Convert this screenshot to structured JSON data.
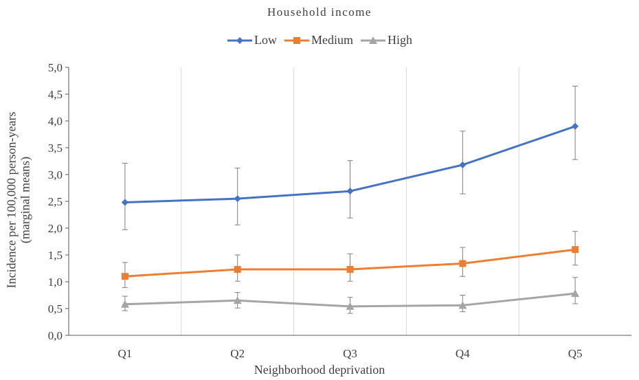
{
  "chart_data": {
    "type": "line",
    "title": "Household income",
    "xlabel": "Neighborhood deprivation",
    "ylabel": [
      "Incidence per 100,000 person-years",
      "(marginal means)"
    ],
    "categories": [
      "Q1",
      "Q2",
      "Q3",
      "Q4",
      "Q5"
    ],
    "ylim": [
      0,
      5
    ],
    "ytick_labels": [
      "0,0",
      "0,5",
      "1,0",
      "1,5",
      "2,0",
      "2,5",
      "3,0",
      "3,5",
      "4,0",
      "4,5",
      "5,0"
    ],
    "grid": "vertical category separators",
    "legend_position": "top",
    "series": [
      {
        "name": "Low",
        "color": "#4472C4",
        "marker": "diamond",
        "values": [
          2.48,
          2.55,
          2.69,
          3.18,
          3.9
        ],
        "error_low": [
          1.97,
          2.06,
          2.19,
          2.64,
          3.28
        ],
        "error_high": [
          3.21,
          3.12,
          3.26,
          3.81,
          4.65
        ]
      },
      {
        "name": "Medium",
        "color": "#ED7D31",
        "marker": "square",
        "values": [
          1.1,
          1.23,
          1.23,
          1.34,
          1.6
        ],
        "error_low": [
          0.89,
          1.01,
          1.01,
          1.1,
          1.31
        ],
        "error_high": [
          1.36,
          1.5,
          1.52,
          1.64,
          1.94
        ]
      },
      {
        "name": "High",
        "color": "#A5A5A5",
        "marker": "triangle",
        "values": [
          0.58,
          0.65,
          0.54,
          0.56,
          0.78
        ],
        "error_low": [
          0.46,
          0.51,
          0.41,
          0.44,
          0.59
        ],
        "error_high": [
          0.73,
          0.8,
          0.71,
          0.75,
          1.08
        ]
      }
    ]
  }
}
